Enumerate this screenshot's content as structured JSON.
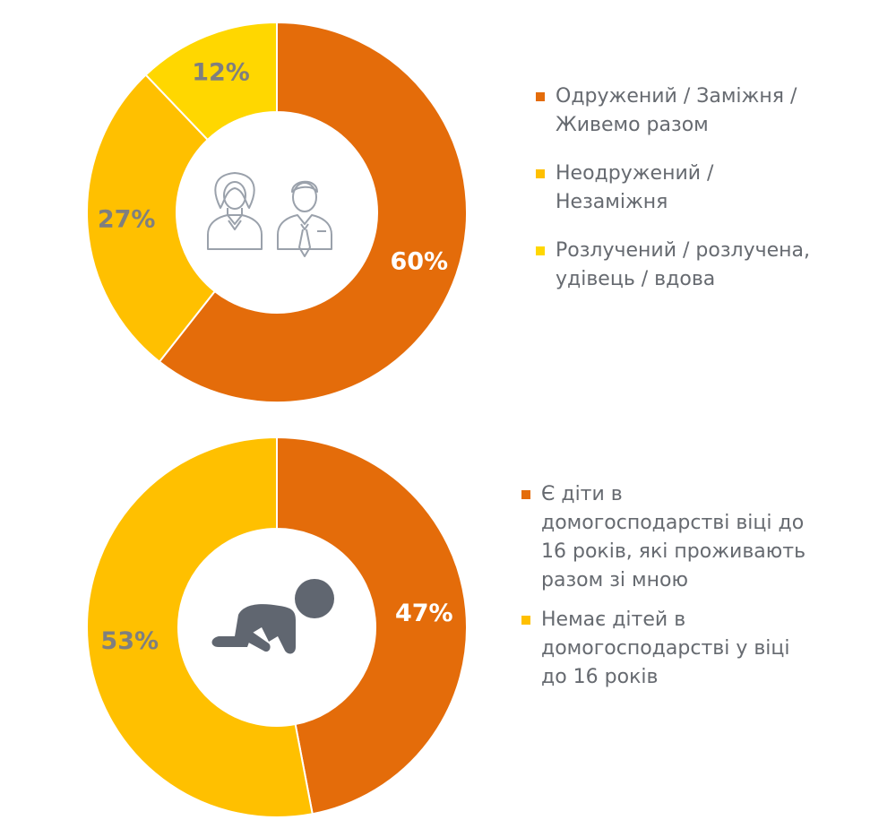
{
  "colors": {
    "orange": "#e46c0a",
    "gold": "#ffc000",
    "yellow": "#ffd700",
    "icon_line": "#9aa1ab",
    "icon_fill": "#606670",
    "label_white": "#ffffff",
    "label_gray": "#7f7f7f"
  },
  "chart_data": [
    {
      "type": "pie",
      "variant": "donut",
      "center_icon": "couple-icon",
      "legend_placement": "right",
      "slices": [
        {
          "label": "Одружений / Заміжня / Живемо разом",
          "value": 60,
          "value_label": "60%",
          "color": "#e46c0a"
        },
        {
          "label": "Неодружений / Незаміжня",
          "value": 27,
          "value_label": "27%",
          "color": "#ffc000"
        },
        {
          "label": "Розлучений / розлучена, удівець / вдова",
          "value": 12,
          "value_label": "12%",
          "color": "#ffd700"
        }
      ],
      "legend_lines": [
        [
          "Одружений / Заміжня /",
          "Живемо разом"
        ],
        [
          "Неодружений /",
          "Незаміжня"
        ],
        [
          "Розлучений / розлучена,",
          "удівець / вдова"
        ]
      ]
    },
    {
      "type": "pie",
      "variant": "donut",
      "center_icon": "crawling-baby-icon",
      "legend_placement": "right",
      "slices": [
        {
          "label": "Є діти в домогосподарстві віці до 16 років, які проживають разом зі мною",
          "value": 47,
          "value_label": "47%",
          "color": "#e46c0a"
        },
        {
          "label": "Немає дітей в домогосподарстві у віці до 16 років",
          "value": 53,
          "value_label": "53%",
          "color": "#ffc000"
        }
      ],
      "legend_lines": [
        [
          "Є діти в",
          "домогосподарстві віці до",
          "16 років, які проживають",
          "разом зі мною"
        ],
        [
          "Немає дітей в",
          "домогосподарстві у віці",
          "до 16 років"
        ]
      ]
    }
  ]
}
